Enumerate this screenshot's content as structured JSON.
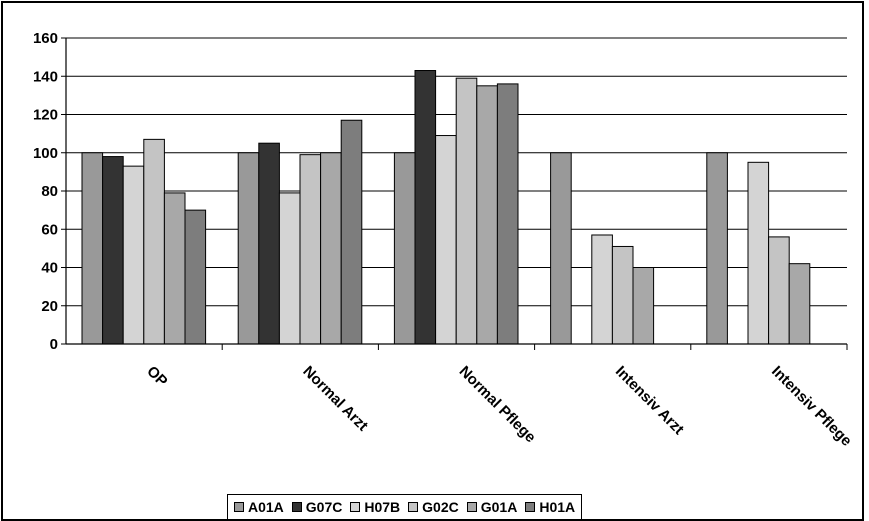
{
  "chart_data": {
    "type": "bar",
    "title": "",
    "xlabel": "",
    "ylabel": "",
    "ylim": [
      0,
      160
    ],
    "yticks": [
      0,
      20,
      40,
      60,
      80,
      100,
      120,
      140,
      160
    ],
    "grid": true,
    "legend_position": "bottom",
    "categories": [
      "OP",
      "Normal Arzt",
      "Normal Pflege",
      "Intensiv Arzt",
      "Intensiv Pflege"
    ],
    "series": [
      {
        "name": "A01A",
        "color": "#999999",
        "values": [
          100,
          100,
          100,
          100,
          100
        ]
      },
      {
        "name": "G07C",
        "color": "#333333",
        "values": [
          98,
          105,
          143,
          null,
          null
        ]
      },
      {
        "name": "H07B",
        "color": "#d4d4d4",
        "values": [
          93,
          79,
          109,
          57,
          95
        ]
      },
      {
        "name": "G02C",
        "color": "#c4c4c4",
        "values": [
          107,
          99,
          139,
          51,
          56
        ]
      },
      {
        "name": "G01A",
        "color": "#a8a8a8",
        "values": [
          79,
          100,
          135,
          40,
          42
        ]
      },
      {
        "name": "H01A",
        "color": "#7d7d7d",
        "values": [
          70,
          117,
          136,
          null,
          null
        ]
      }
    ]
  }
}
